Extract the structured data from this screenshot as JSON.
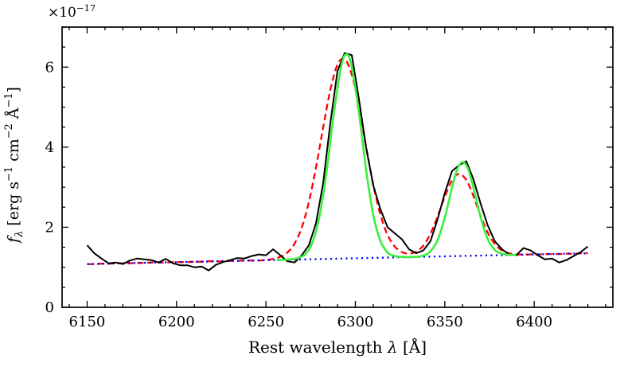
{
  "figure": {
    "background": "#ffffff",
    "frame_color": "#000000",
    "offset_tokens": [
      {
        "t": "×10",
        "k": "n"
      },
      {
        "t": "−17",
        "k": "sup"
      }
    ],
    "xlabel_tokens": [
      {
        "t": "Rest wavelength ",
        "k": "n"
      },
      {
        "t": "λ",
        "k": "i"
      },
      {
        "t": " [Å]",
        "k": "n"
      }
    ],
    "ylabel_tokens": [
      {
        "t": "f",
        "k": "i"
      },
      {
        "t": "λ",
        "k": "isub"
      },
      {
        "t": " [erg s",
        "k": "n"
      },
      {
        "t": "−1",
        "k": "sup"
      },
      {
        "t": " cm",
        "k": "n"
      },
      {
        "t": "−2",
        "k": "sup"
      },
      {
        "t": " Å",
        "k": "n"
      },
      {
        "t": "−1",
        "k": "sup"
      },
      {
        "t": "]",
        "k": "n"
      }
    ]
  },
  "chart_data": {
    "type": "line",
    "title": "",
    "xlabel": "Rest wavelength λ [Å]",
    "ylabel": "f_λ [erg s⁻¹ cm⁻² Å⁻¹]",
    "y_scale_offset": "×10⁻¹⁷",
    "xlim": [
      6136,
      6444
    ],
    "ylim": [
      0,
      7
    ],
    "xticks": [
      6150,
      6200,
      6250,
      6300,
      6350,
      6400
    ],
    "xtick_labels": [
      "6150",
      "6200",
      "6250",
      "6300",
      "6350",
      "6400"
    ],
    "yticks": [
      0,
      2,
      4,
      6
    ],
    "ytick_labels": [
      "0",
      "2",
      "4",
      "6"
    ],
    "x_minor_step": 10,
    "y_minor_step": 0.5,
    "grid": false,
    "legend": null,
    "emission_peaks": [
      {
        "wavelength": 6295,
        "peak_flux": 6.35
      },
      {
        "wavelength": 6360,
        "peak_flux": 3.65
      }
    ],
    "series": [
      {
        "name": "broad-model-dashed",
        "label": "two-Gaussian model + continuum (dashed)",
        "color": "#ff0000",
        "style": "dashed",
        "width": 2.3,
        "smooth": true,
        "x": [
          6150,
          6154,
          6158,
          6162,
          6166,
          6170,
          6174,
          6178,
          6182,
          6186,
          6190,
          6194,
          6198,
          6202,
          6206,
          6210,
          6214,
          6218,
          6222,
          6226,
          6230,
          6234,
          6238,
          6242,
          6246,
          6250,
          6254,
          6258,
          6262,
          6266,
          6270,
          6274,
          6278,
          6282,
          6286,
          6290,
          6294,
          6298,
          6302,
          6306,
          6310,
          6314,
          6318,
          6322,
          6326,
          6330,
          6334,
          6338,
          6342,
          6346,
          6350,
          6354,
          6358,
          6362,
          6366,
          6370,
          6374,
          6378,
          6382,
          6386,
          6390,
          6394,
          6398,
          6402,
          6406,
          6410,
          6414,
          6418,
          6422,
          6426,
          6430
        ],
        "y": [
          1.08,
          1.08,
          1.09,
          1.09,
          1.1,
          1.1,
          1.1,
          1.11,
          1.11,
          1.12,
          1.12,
          1.12,
          1.13,
          1.13,
          1.13,
          1.14,
          1.14,
          1.15,
          1.15,
          1.15,
          1.16,
          1.16,
          1.17,
          1.17,
          1.17,
          1.18,
          1.21,
          1.26,
          1.37,
          1.59,
          1.99,
          2.63,
          3.49,
          4.49,
          5.43,
          6.06,
          6.2,
          5.81,
          5.0,
          4.01,
          3.07,
          2.32,
          1.81,
          1.52,
          1.38,
          1.34,
          1.39,
          1.54,
          1.84,
          2.27,
          2.76,
          3.17,
          3.33,
          3.18,
          2.78,
          2.29,
          1.87,
          1.58,
          1.42,
          1.35,
          1.32,
          1.32,
          1.32,
          1.32,
          1.33,
          1.33,
          1.33,
          1.34,
          1.34,
          1.35,
          1.35
        ]
      },
      {
        "name": "continuum-dotted",
        "label": "linear continuum (dotted)",
        "color": "#0000ff",
        "style": "dotted",
        "width": 2.3,
        "smooth": false,
        "x": [
          6150,
          6430
        ],
        "y": [
          1.08,
          1.35
        ]
      },
      {
        "name": "observed-spectrum",
        "label": "observed spectrum",
        "color": "#000000",
        "style": "solid",
        "width": 2.0,
        "smooth": false,
        "x": [
          6150,
          6154,
          6158,
          6162,
          6166,
          6170,
          6174,
          6178,
          6182,
          6186,
          6190,
          6194,
          6198,
          6202,
          6206,
          6210,
          6214,
          6218,
          6222,
          6226,
          6230,
          6234,
          6238,
          6242,
          6246,
          6250,
          6254,
          6258,
          6262,
          6266,
          6270,
          6274,
          6278,
          6282,
          6286,
          6290,
          6294,
          6298,
          6302,
          6306,
          6310,
          6314,
          6318,
          6322,
          6326,
          6330,
          6334,
          6338,
          6342,
          6346,
          6350,
          6354,
          6358,
          6362,
          6366,
          6370,
          6374,
          6378,
          6382,
          6386,
          6390,
          6394,
          6398,
          6402,
          6406,
          6410,
          6414,
          6418,
          6422,
          6426,
          6430
        ],
        "y": [
          1.55,
          1.35,
          1.22,
          1.1,
          1.12,
          1.08,
          1.17,
          1.22,
          1.2,
          1.18,
          1.12,
          1.21,
          1.1,
          1.05,
          1.05,
          1.0,
          1.02,
          0.92,
          1.06,
          1.13,
          1.18,
          1.23,
          1.22,
          1.28,
          1.32,
          1.3,
          1.45,
          1.3,
          1.15,
          1.12,
          1.3,
          1.55,
          2.1,
          3.1,
          4.6,
          5.9,
          6.35,
          6.3,
          5.2,
          4.0,
          3.05,
          2.45,
          2.0,
          1.85,
          1.7,
          1.45,
          1.35,
          1.42,
          1.65,
          2.2,
          2.85,
          3.4,
          3.55,
          3.65,
          3.2,
          2.6,
          2.05,
          1.65,
          1.45,
          1.32,
          1.3,
          1.48,
          1.42,
          1.3,
          1.2,
          1.22,
          1.12,
          1.18,
          1.28,
          1.38,
          1.52
        ]
      },
      {
        "name": "narrow-model-solid",
        "label": "narrow two-Gaussian fit (solid)",
        "color": "#3bf03b",
        "style": "solid",
        "width": 2.6,
        "smooth": true,
        "x": [
          6256,
          6260,
          6264,
          6268,
          6272,
          6276,
          6280,
          6284,
          6288,
          6292,
          6295,
          6298,
          6302,
          6306,
          6310,
          6314,
          6318,
          6322,
          6326,
          6330,
          6334,
          6338,
          6342,
          6346,
          6350,
          6354,
          6357,
          6360,
          6363,
          6366,
          6370,
          6374,
          6378,
          6382,
          6386,
          6390
        ],
        "y": [
          1.18,
          1.19,
          1.2,
          1.23,
          1.33,
          1.62,
          2.28,
          3.42,
          4.85,
          6.01,
          6.32,
          6.01,
          4.86,
          3.44,
          2.31,
          1.66,
          1.37,
          1.28,
          1.26,
          1.25,
          1.26,
          1.29,
          1.4,
          1.68,
          2.24,
          2.98,
          3.45,
          3.63,
          3.46,
          2.99,
          2.26,
          1.71,
          1.43,
          1.34,
          1.31,
          1.31
        ]
      }
    ]
  }
}
